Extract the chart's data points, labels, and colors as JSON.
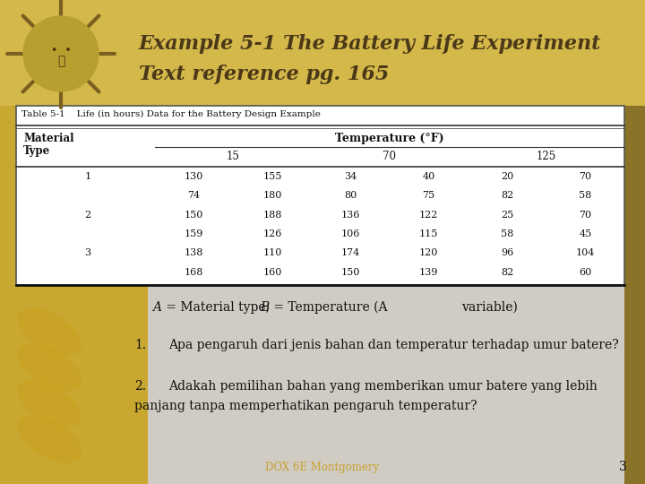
{
  "title_line1": "Example 5-1 The Battery Life Experiment",
  "title_line2": "Text reference pg. 165",
  "table_caption": "Table 5-1    Life (in hours) Data for the Battery Design Example",
  "col_header_main": "Temperature (°F)",
  "col_header_sub": [
    "15",
    "70",
    "125"
  ],
  "row_header_line1": "Material",
  "row_header_line2": "Type",
  "table_data": [
    [
      "1",
      "130",
      "155",
      "34",
      "40",
      "20",
      "70"
    ],
    [
      "",
      "74",
      "180",
      "80",
      "75",
      "82",
      "58"
    ],
    [
      "2",
      "150",
      "188",
      "136",
      "122",
      "25",
      "70"
    ],
    [
      "",
      "159",
      "126",
      "106",
      "115",
      "58",
      "45"
    ],
    [
      "3",
      "138",
      "110",
      "174",
      "120",
      "96",
      "104"
    ],
    [
      "",
      "168",
      "160",
      "150",
      "139",
      "82",
      "60"
    ]
  ],
  "note_A": "A",
  "note_mid": " = Material type; ",
  "note_B": "B",
  "note_end": " = Temperature (A",
  "note_var": "variable)",
  "question1_num": "1.",
  "question1": "Apa pengaruh dari jenis bahan dan temperatur terhadap umur batere?",
  "question2_num": "2.",
  "question2_line1": "Adakah pemilihan bahan yang memberikan umur batere yang lebih",
  "question2_line2": "panjang tanpa memperhatikan pengaruh temperatur?",
  "footer": "DOX 6E Montgomery",
  "page_num": "3",
  "bg_top": "#e8e0d0",
  "bg_bottom": "#c8b060",
  "bg_left_strip": "#d4a830",
  "accent_right": "#7a6020",
  "title_color": "#4a3818",
  "text_color": "#111111",
  "footer_color": "#c8a030",
  "table_bg": "#ffffff"
}
